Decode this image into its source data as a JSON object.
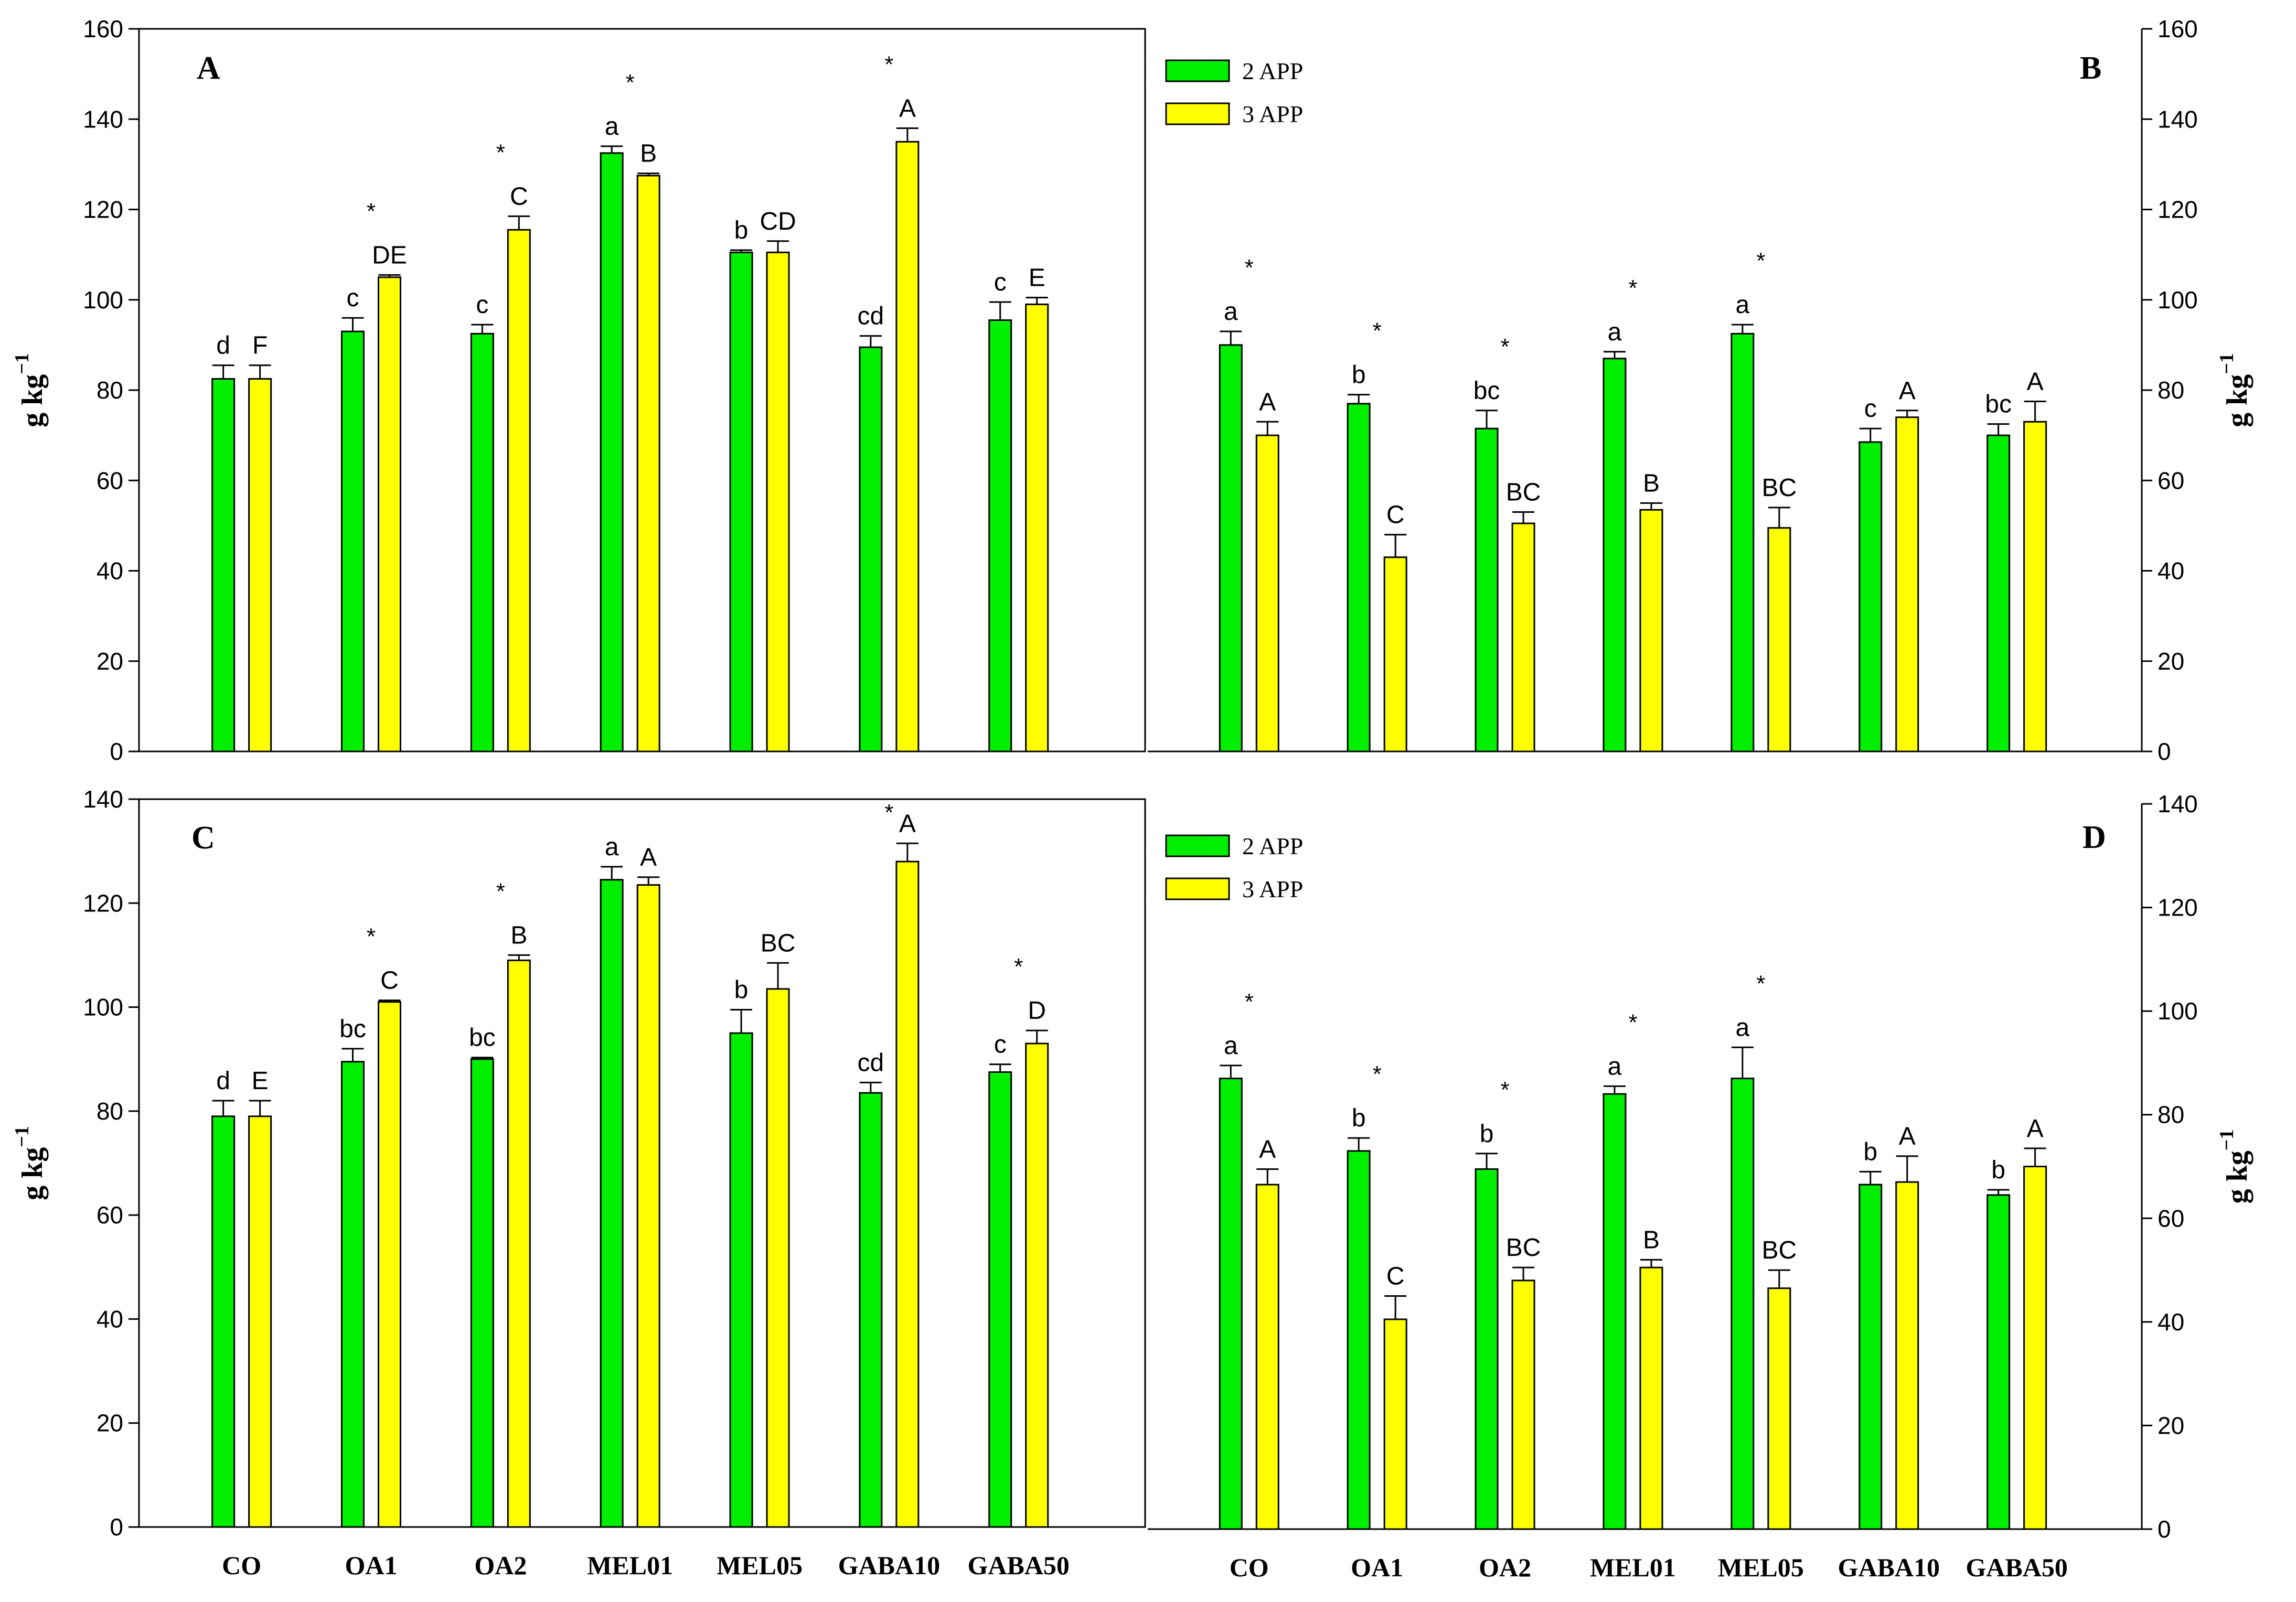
{
  "colors": {
    "series1": "#00ee00",
    "series2": "#ffff00",
    "stroke": "#000000"
  },
  "legend": {
    "entries": [
      "2 APP",
      "3 APP"
    ]
  },
  "y_axis_label": "g kg",
  "y_axis_sup": "−1",
  "chart_data": [
    {
      "panel": "A",
      "type": "bar",
      "categories": [
        "CO",
        "OA1",
        "OA2",
        "MEL01",
        "MEL05",
        "GABA10",
        "GABA50"
      ],
      "show_categories": false,
      "y_side": "left",
      "legend": false,
      "ylim": [
        0,
        160
      ],
      "yticks": [
        0,
        20,
        40,
        60,
        80,
        100,
        120,
        140,
        160
      ],
      "ylabel": "g kg−1",
      "series": [
        {
          "name": "2 APP",
          "values": [
            82.5,
            93,
            92.5,
            132.5,
            110.5,
            89.5,
            95.5
          ],
          "errors": [
            3,
            3,
            2,
            1.5,
            0.5,
            2.5,
            4
          ],
          "letters": [
            "d",
            "c",
            "c",
            "a",
            "b",
            "cd",
            "c"
          ]
        },
        {
          "name": "3 APP",
          "values": [
            82.5,
            105,
            115.5,
            127.5,
            110.5,
            135,
            99
          ],
          "errors": [
            3,
            0.5,
            3,
            0.5,
            2.5,
            3,
            1.5
          ],
          "letters": [
            "F",
            "DE",
            "C",
            "B",
            "CD",
            "A",
            "E"
          ]
        }
      ],
      "stars": [
        false,
        true,
        true,
        true,
        false,
        true,
        false
      ]
    },
    {
      "panel": "B",
      "type": "bar",
      "categories": [
        "CO",
        "OA1",
        "OA2",
        "MEL01",
        "MEL05",
        "GABA10",
        "GABA50"
      ],
      "show_categories": false,
      "y_side": "right",
      "legend": true,
      "ylim": [
        0,
        160
      ],
      "yticks": [
        0,
        20,
        40,
        60,
        80,
        100,
        120,
        140,
        160
      ],
      "ylabel": "g kg−1",
      "series": [
        {
          "name": "2 APP",
          "values": [
            90,
            77,
            71.5,
            87,
            92.5,
            68.5,
            70
          ],
          "errors": [
            3,
            2,
            4,
            1.5,
            2,
            3,
            2.5
          ],
          "letters": [
            "a",
            "b",
            "bc",
            "a",
            "a",
            "c",
            "bc"
          ]
        },
        {
          "name": "3 APP",
          "values": [
            70,
            43,
            50.5,
            53.5,
            49.5,
            74,
            73
          ],
          "errors": [
            3,
            5,
            2.5,
            1.5,
            4.5,
            1.5,
            4.5
          ],
          "letters": [
            "A",
            "C",
            "BC",
            "B",
            "BC",
            "A",
            "A"
          ]
        }
      ],
      "stars": [
        true,
        true,
        true,
        true,
        true,
        false,
        false
      ]
    },
    {
      "panel": "C",
      "type": "bar",
      "categories": [
        "CO",
        "OA1",
        "OA2",
        "MEL01",
        "MEL05",
        "GABA10",
        "GABA50"
      ],
      "show_categories": true,
      "y_side": "left",
      "legend": false,
      "ylim": [
        0,
        140
      ],
      "yticks": [
        0,
        20,
        40,
        60,
        80,
        100,
        120,
        140
      ],
      "ylabel": "g kg−1",
      "series": [
        {
          "name": "2 APP",
          "values": [
            79,
            89.5,
            90,
            124.5,
            95,
            83.5,
            87.5
          ],
          "errors": [
            3,
            2.5,
            0.3,
            2.5,
            4.5,
            2,
            1.5
          ],
          "letters": [
            "d",
            "bc",
            "bc",
            "a",
            "b",
            "cd",
            "c"
          ]
        },
        {
          "name": "3 APP",
          "values": [
            79,
            101,
            109,
            123.5,
            103.5,
            128,
            93
          ],
          "errors": [
            3,
            0.3,
            1,
            1.5,
            5,
            3.5,
            2.5
          ],
          "letters": [
            "E",
            "C",
            "B",
            "A",
            "BC",
            "A",
            "D"
          ]
        }
      ],
      "stars": [
        false,
        true,
        true,
        false,
        false,
        true,
        true
      ]
    },
    {
      "panel": "D",
      "type": "bar",
      "categories": [
        "CO",
        "OA1",
        "OA2",
        "MEL01",
        "MEL05",
        "GABA10",
        "GABA50"
      ],
      "show_categories": true,
      "y_side": "right",
      "legend": true,
      "ylim": [
        0,
        140
      ],
      "yticks": [
        0,
        20,
        40,
        60,
        80,
        100,
        120,
        140
      ],
      "ylabel": "g kg−1",
      "series": [
        {
          "name": "2 APP",
          "values": [
            87,
            73,
            69.5,
            84,
            87,
            66.5,
            64.5
          ],
          "errors": [
            2.5,
            2.5,
            3,
            1.5,
            6,
            2.5,
            1
          ],
          "letters": [
            "a",
            "b",
            "b",
            "a",
            "a",
            "b",
            "b"
          ]
        },
        {
          "name": "3 APP",
          "values": [
            66.5,
            40.5,
            48,
            50.5,
            46.5,
            67,
            70
          ],
          "errors": [
            3,
            4.5,
            2.5,
            1.5,
            3.5,
            5,
            3.5
          ],
          "letters": [
            "A",
            "C",
            "BC",
            "B",
            "BC",
            "A",
            "A"
          ]
        }
      ],
      "stars": [
        true,
        true,
        true,
        true,
        true,
        false,
        false
      ]
    }
  ]
}
